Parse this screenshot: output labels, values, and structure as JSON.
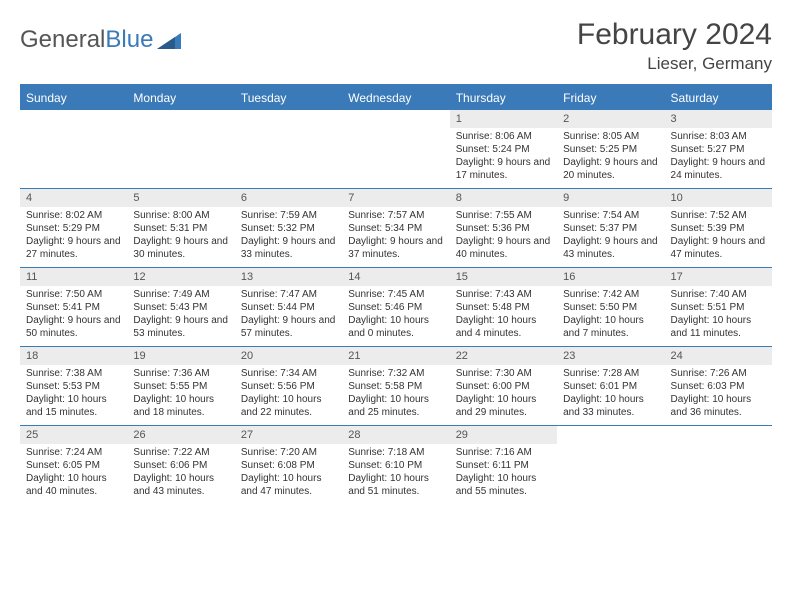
{
  "logo": {
    "word1": "General",
    "word2": "Blue"
  },
  "title": "February 2024",
  "location": "Lieser, Germany",
  "colors": {
    "accent": "#3a7ab8",
    "header_bg": "#3a7ab8",
    "header_text": "#ffffff",
    "daynum_bg": "#ececec",
    "text": "#333333"
  },
  "day_names": [
    "Sunday",
    "Monday",
    "Tuesday",
    "Wednesday",
    "Thursday",
    "Friday",
    "Saturday"
  ],
  "weeks": [
    [
      {
        "n": "",
        "lines": []
      },
      {
        "n": "",
        "lines": []
      },
      {
        "n": "",
        "lines": []
      },
      {
        "n": "",
        "lines": []
      },
      {
        "n": "1",
        "lines": [
          "Sunrise: 8:06 AM",
          "Sunset: 5:24 PM",
          "Daylight: 9 hours and 17 minutes."
        ]
      },
      {
        "n": "2",
        "lines": [
          "Sunrise: 8:05 AM",
          "Sunset: 5:25 PM",
          "Daylight: 9 hours and 20 minutes."
        ]
      },
      {
        "n": "3",
        "lines": [
          "Sunrise: 8:03 AM",
          "Sunset: 5:27 PM",
          "Daylight: 9 hours and 24 minutes."
        ]
      }
    ],
    [
      {
        "n": "4",
        "lines": [
          "Sunrise: 8:02 AM",
          "Sunset: 5:29 PM",
          "Daylight: 9 hours and 27 minutes."
        ]
      },
      {
        "n": "5",
        "lines": [
          "Sunrise: 8:00 AM",
          "Sunset: 5:31 PM",
          "Daylight: 9 hours and 30 minutes."
        ]
      },
      {
        "n": "6",
        "lines": [
          "Sunrise: 7:59 AM",
          "Sunset: 5:32 PM",
          "Daylight: 9 hours and 33 minutes."
        ]
      },
      {
        "n": "7",
        "lines": [
          "Sunrise: 7:57 AM",
          "Sunset: 5:34 PM",
          "Daylight: 9 hours and 37 minutes."
        ]
      },
      {
        "n": "8",
        "lines": [
          "Sunrise: 7:55 AM",
          "Sunset: 5:36 PM",
          "Daylight: 9 hours and 40 minutes."
        ]
      },
      {
        "n": "9",
        "lines": [
          "Sunrise: 7:54 AM",
          "Sunset: 5:37 PM",
          "Daylight: 9 hours and 43 minutes."
        ]
      },
      {
        "n": "10",
        "lines": [
          "Sunrise: 7:52 AM",
          "Sunset: 5:39 PM",
          "Daylight: 9 hours and 47 minutes."
        ]
      }
    ],
    [
      {
        "n": "11",
        "lines": [
          "Sunrise: 7:50 AM",
          "Sunset: 5:41 PM",
          "Daylight: 9 hours and 50 minutes."
        ]
      },
      {
        "n": "12",
        "lines": [
          "Sunrise: 7:49 AM",
          "Sunset: 5:43 PM",
          "Daylight: 9 hours and 53 minutes."
        ]
      },
      {
        "n": "13",
        "lines": [
          "Sunrise: 7:47 AM",
          "Sunset: 5:44 PM",
          "Daylight: 9 hours and 57 minutes."
        ]
      },
      {
        "n": "14",
        "lines": [
          "Sunrise: 7:45 AM",
          "Sunset: 5:46 PM",
          "Daylight: 10 hours and 0 minutes."
        ]
      },
      {
        "n": "15",
        "lines": [
          "Sunrise: 7:43 AM",
          "Sunset: 5:48 PM",
          "Daylight: 10 hours and 4 minutes."
        ]
      },
      {
        "n": "16",
        "lines": [
          "Sunrise: 7:42 AM",
          "Sunset: 5:50 PM",
          "Daylight: 10 hours and 7 minutes."
        ]
      },
      {
        "n": "17",
        "lines": [
          "Sunrise: 7:40 AM",
          "Sunset: 5:51 PM",
          "Daylight: 10 hours and 11 minutes."
        ]
      }
    ],
    [
      {
        "n": "18",
        "lines": [
          "Sunrise: 7:38 AM",
          "Sunset: 5:53 PM",
          "Daylight: 10 hours and 15 minutes."
        ]
      },
      {
        "n": "19",
        "lines": [
          "Sunrise: 7:36 AM",
          "Sunset: 5:55 PM",
          "Daylight: 10 hours and 18 minutes."
        ]
      },
      {
        "n": "20",
        "lines": [
          "Sunrise: 7:34 AM",
          "Sunset: 5:56 PM",
          "Daylight: 10 hours and 22 minutes."
        ]
      },
      {
        "n": "21",
        "lines": [
          "Sunrise: 7:32 AM",
          "Sunset: 5:58 PM",
          "Daylight: 10 hours and 25 minutes."
        ]
      },
      {
        "n": "22",
        "lines": [
          "Sunrise: 7:30 AM",
          "Sunset: 6:00 PM",
          "Daylight: 10 hours and 29 minutes."
        ]
      },
      {
        "n": "23",
        "lines": [
          "Sunrise: 7:28 AM",
          "Sunset: 6:01 PM",
          "Daylight: 10 hours and 33 minutes."
        ]
      },
      {
        "n": "24",
        "lines": [
          "Sunrise: 7:26 AM",
          "Sunset: 6:03 PM",
          "Daylight: 10 hours and 36 minutes."
        ]
      }
    ],
    [
      {
        "n": "25",
        "lines": [
          "Sunrise: 7:24 AM",
          "Sunset: 6:05 PM",
          "Daylight: 10 hours and 40 minutes."
        ]
      },
      {
        "n": "26",
        "lines": [
          "Sunrise: 7:22 AM",
          "Sunset: 6:06 PM",
          "Daylight: 10 hours and 43 minutes."
        ]
      },
      {
        "n": "27",
        "lines": [
          "Sunrise: 7:20 AM",
          "Sunset: 6:08 PM",
          "Daylight: 10 hours and 47 minutes."
        ]
      },
      {
        "n": "28",
        "lines": [
          "Sunrise: 7:18 AM",
          "Sunset: 6:10 PM",
          "Daylight: 10 hours and 51 minutes."
        ]
      },
      {
        "n": "29",
        "lines": [
          "Sunrise: 7:16 AM",
          "Sunset: 6:11 PM",
          "Daylight: 10 hours and 55 minutes."
        ]
      },
      {
        "n": "",
        "lines": []
      },
      {
        "n": "",
        "lines": []
      }
    ]
  ]
}
